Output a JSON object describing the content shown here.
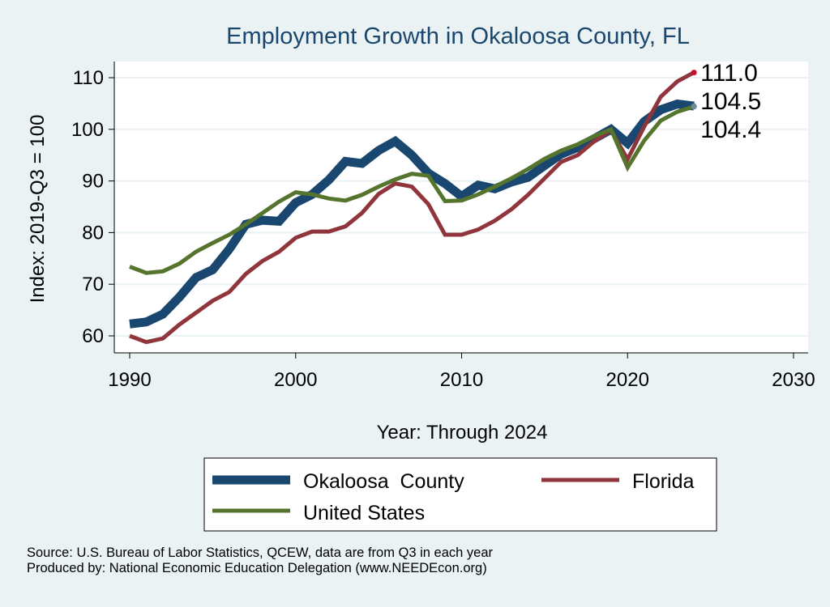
{
  "chart_data": {
    "type": "line",
    "title": "Employment Growth in Okaloosa County, FL",
    "xlabel": "Year: Through 2024",
    "ylabel": "Index: 2019-Q3 = 100",
    "xlim": [
      1990,
      2030
    ],
    "ylim": [
      57,
      113
    ],
    "xticks": [
      1990,
      2000,
      2010,
      2020,
      2030
    ],
    "yticks": [
      60,
      70,
      80,
      90,
      100,
      110
    ],
    "grid": true,
    "legend_position": "bottom",
    "x": [
      1990,
      1991,
      1992,
      1993,
      1994,
      1995,
      1996,
      1997,
      1998,
      1999,
      2000,
      2001,
      2002,
      2003,
      2004,
      2005,
      2006,
      2007,
      2008,
      2009,
      2010,
      2011,
      2012,
      2013,
      2014,
      2015,
      2016,
      2017,
      2018,
      2019,
      2020,
      2021,
      2022,
      2023,
      2024
    ],
    "series": [
      {
        "name": "Okaloosa  County",
        "color": "#1a476f",
        "end_label": "104.5",
        "end_marker_color": "#6c8a96",
        "values": [
          62.3,
          62.7,
          64.2,
          67.5,
          71.3,
          72.8,
          76.8,
          81.6,
          82.4,
          82.2,
          85.8,
          87.4,
          90.2,
          93.8,
          93.4,
          95.9,
          97.7,
          95.0,
          91.5,
          89.5,
          87.0,
          89.2,
          88.5,
          89.8,
          90.7,
          93.0,
          95.2,
          96.5,
          98.2,
          100.0,
          97.3,
          101.5,
          103.8,
          104.9,
          104.5
        ]
      },
      {
        "name": "Florida",
        "color": "#90353b",
        "end_label": "111.0",
        "end_marker_color": "#c8102e",
        "values": [
          60.0,
          58.8,
          59.5,
          62.2,
          64.5,
          66.8,
          68.5,
          72.0,
          74.5,
          76.3,
          79.0,
          80.2,
          80.2,
          81.2,
          83.8,
          87.5,
          89.5,
          88.9,
          85.5,
          79.6,
          79.6,
          80.6,
          82.3,
          84.5,
          87.3,
          90.5,
          93.7,
          95.0,
          97.7,
          99.8,
          94.2,
          100.5,
          106.3,
          109.3,
          111.0
        ]
      },
      {
        "name": "United States",
        "color": "#55752f",
        "end_label": "104.4",
        "end_marker_color": "#6c8a96",
        "values": [
          73.4,
          72.2,
          72.5,
          74.0,
          76.3,
          78.0,
          79.6,
          81.6,
          83.8,
          86.0,
          87.8,
          87.4,
          86.6,
          86.2,
          87.3,
          88.9,
          90.3,
          91.4,
          91.0,
          86.1,
          86.2,
          87.4,
          88.9,
          90.5,
          92.3,
          94.3,
          95.9,
          97.1,
          98.7,
          100.0,
          92.6,
          97.8,
          101.7,
          103.4,
          104.4
        ]
      }
    ],
    "notes": [
      "Source: U.S. Bureau of Labor Statistics, QCEW, data are from Q3 in each year",
      "Produced by: National Economic Education Delegation (www.NEEDEcon.org)"
    ]
  }
}
